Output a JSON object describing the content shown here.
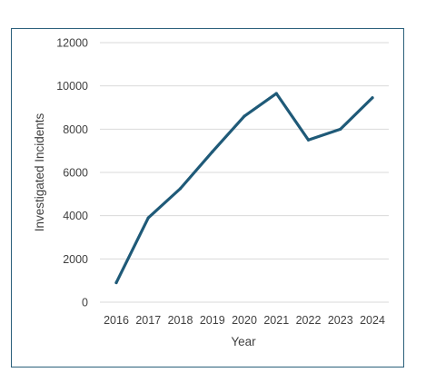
{
  "chart_data": {
    "type": "line",
    "title": "",
    "xlabel": "Year",
    "ylabel": "Investigated Incidents",
    "categories": [
      "2016",
      "2017",
      "2018",
      "2019",
      "2020",
      "2021",
      "2022",
      "2023",
      "2024"
    ],
    "series": [
      {
        "values": [
          900,
          3900,
          5250,
          6950,
          8600,
          9650,
          7500,
          8000,
          9450
        ],
        "color": "#1f5a78"
      }
    ],
    "ylim": [
      0,
      12000
    ],
    "yticks": [
      0,
      2000,
      4000,
      6000,
      8000,
      10000,
      12000
    ],
    "ytick_labels": [
      "0",
      "2000",
      "4000",
      "6000",
      "8000",
      "10000",
      "12000"
    ],
    "grid": true,
    "legend": "none",
    "colors": {
      "line": "#1f5a78",
      "grid": "#d9d9d9",
      "frame": "#2a5f7a",
      "text": "#404040"
    }
  }
}
